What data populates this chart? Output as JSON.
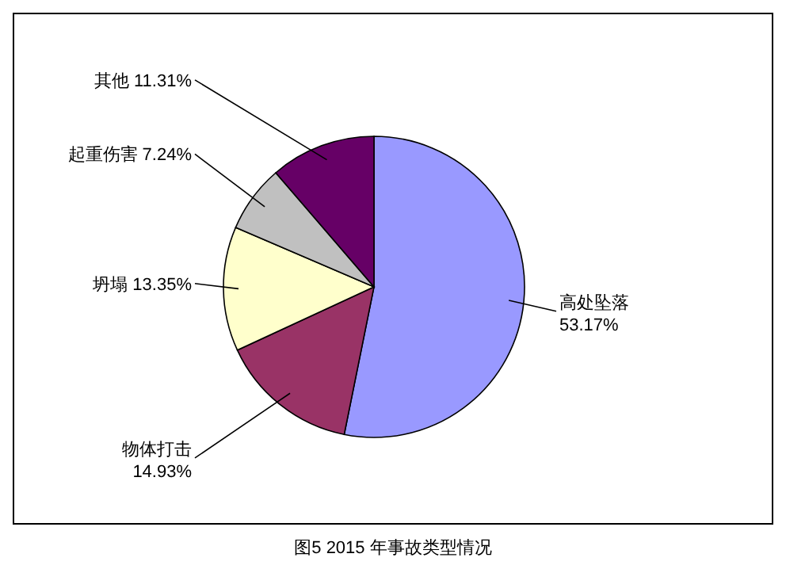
{
  "chart_data": {
    "type": "pie",
    "title": "图5  2015 年事故类型情况",
    "categories": [
      "高处坠落",
      "物体打击",
      "坍塌",
      "起重伤害",
      "其他"
    ],
    "values": [
      53.17,
      14.93,
      13.35,
      7.24,
      11.31
    ],
    "value_labels": [
      "53.17%",
      "14.93%",
      "13.35%",
      "7.24%",
      "11.31%"
    ],
    "colors": [
      "#9999ff",
      "#993366",
      "#ffffcc",
      "#c0c0c0",
      "#660066"
    ]
  }
}
